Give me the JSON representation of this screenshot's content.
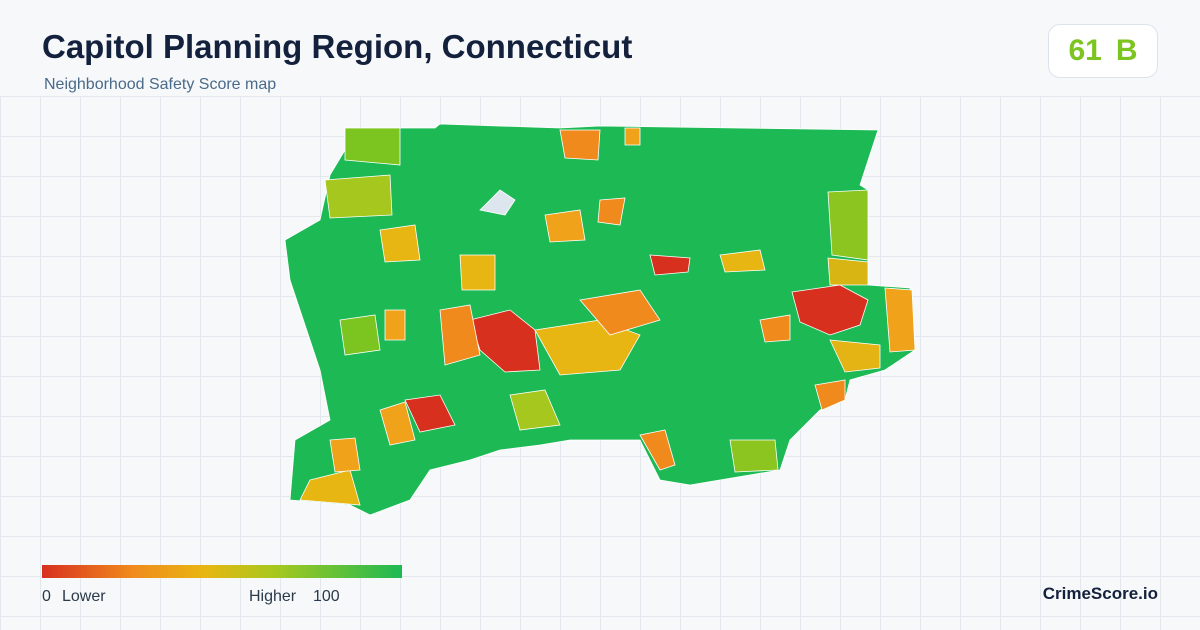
{
  "header": {
    "title": "Capitol Planning Region, Connecticut",
    "subtitle": "Neighborhood Safety Score map"
  },
  "score": {
    "value": 61,
    "grade": "B"
  },
  "legend": {
    "min": 0,
    "min_label": "Lower",
    "max_label": "Higher",
    "max": 100
  },
  "brand": "CrimeScore.io"
}
